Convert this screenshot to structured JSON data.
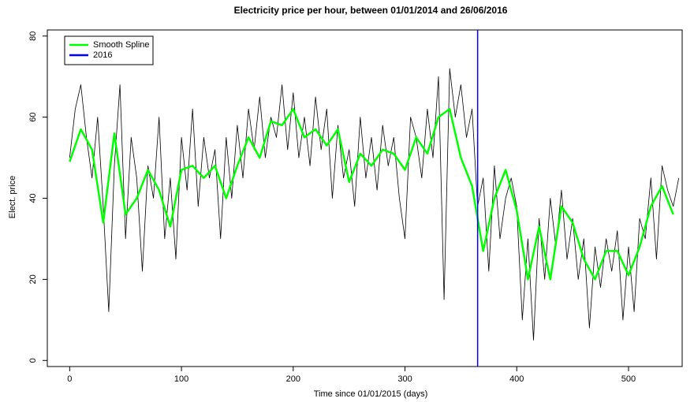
{
  "chart_data": {
    "type": "line",
    "title": "Electricity price per hour, between 01/01/2014 and 26/06/2016",
    "x_label": "Time since 01/01/2015 (days)",
    "y_label": "Elect. price",
    "xlim": [
      -20,
      548
    ],
    "ylim": [
      -1.5,
      81.5
    ],
    "xticks": [
      0,
      100,
      200,
      300,
      400,
      500
    ],
    "yticks": [
      0,
      20,
      40,
      60,
      80
    ],
    "legend": "top-left",
    "series": [
      {
        "color": "#000000",
        "width": 0.8,
        "x": [
          0,
          5,
          10,
          15,
          20,
          25,
          30,
          35,
          40,
          45,
          50,
          55,
          60,
          65,
          70,
          75,
          80,
          85,
          90,
          95,
          100,
          105,
          110,
          115,
          120,
          125,
          130,
          135,
          140,
          145,
          150,
          155,
          160,
          165,
          170,
          175,
          180,
          185,
          190,
          195,
          200,
          205,
          210,
          215,
          220,
          225,
          230,
          235,
          240,
          245,
          250,
          255,
          260,
          265,
          270,
          275,
          280,
          285,
          290,
          295,
          300,
          305,
          310,
          315,
          320,
          325,
          330,
          335,
          340,
          345,
          350,
          355,
          360,
          365,
          370,
          375,
          380,
          385,
          390,
          395,
          400,
          405,
          410,
          415,
          420,
          425,
          430,
          435,
          440,
          445,
          450,
          455,
          460,
          465,
          470,
          475,
          480,
          485,
          490,
          495,
          500,
          505,
          510,
          515,
          520,
          525,
          530,
          535,
          540,
          545
        ],
        "values": [
          50,
          62,
          68,
          55,
          45,
          60,
          38,
          12,
          48,
          68,
          30,
          55,
          45,
          22,
          48,
          40,
          60,
          30,
          45,
          25,
          55,
          42,
          62,
          38,
          55,
          45,
          52,
          30,
          55,
          40,
          58,
          45,
          62,
          52,
          65,
          50,
          60,
          55,
          68,
          52,
          66,
          50,
          60,
          48,
          65,
          52,
          62,
          40,
          58,
          45,
          52,
          38,
          60,
          45,
          55,
          42,
          58,
          48,
          55,
          40,
          30,
          60,
          55,
          45,
          62,
          50,
          70,
          15,
          72,
          60,
          68,
          55,
          62,
          38,
          45,
          22,
          48,
          30,
          40,
          45,
          38,
          10,
          30,
          5,
          35,
          20,
          40,
          28,
          42,
          25,
          35,
          20,
          30,
          8,
          28,
          18,
          30,
          22,
          32,
          10,
          28,
          12,
          35,
          30,
          45,
          25,
          48,
          42,
          38,
          45
        ]
      },
      {
        "name": "Smooth Spline",
        "color": "#00ff00",
        "width": 2.5,
        "x": [
          0,
          10,
          20,
          30,
          40,
          50,
          60,
          70,
          80,
          90,
          100,
          110,
          120,
          130,
          140,
          150,
          160,
          170,
          180,
          190,
          200,
          210,
          220,
          230,
          240,
          250,
          260,
          270,
          280,
          290,
          300,
          310,
          320,
          330,
          340,
          350,
          360,
          370,
          380,
          390,
          400,
          410,
          420,
          430,
          440,
          450,
          460,
          470,
          480,
          490,
          500,
          510,
          520,
          530,
          540
        ],
        "values": [
          49,
          57,
          52,
          34,
          56,
          36,
          40,
          47,
          42,
          33,
          47,
          48,
          45,
          48,
          40,
          48,
          55,
          50,
          59,
          58,
          62,
          55,
          57,
          53,
          57,
          44,
          51,
          48,
          52,
          51,
          47,
          55,
          51,
          60,
          62,
          50,
          43,
          27,
          40,
          47,
          37,
          20,
          33,
          20,
          38,
          34,
          25,
          20,
          27,
          27,
          21,
          28,
          38,
          43,
          36
        ]
      }
    ],
    "vlines": [
      {
        "name": "2016",
        "color": "#0000ff",
        "x": 365
      }
    ]
  }
}
